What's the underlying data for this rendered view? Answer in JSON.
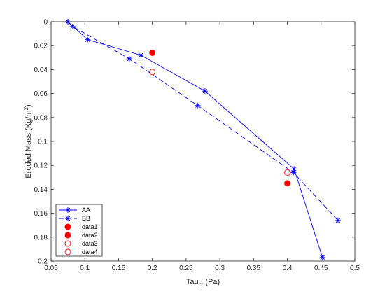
{
  "chart_data": {
    "type": "line",
    "xlabel": "Tau",
    "xlabel_sub": "cr",
    "xlabel_unit": " (Pa)",
    "ylabel": "Eroded Mass  (Kg/m",
    "ylabel_sup": "2",
    "ylabel_end": ")",
    "xlim": [
      0.05,
      0.5
    ],
    "ylim": [
      0,
      0.2
    ],
    "y_reversed": true,
    "x_ticks": [
      0.05,
      0.1,
      0.15,
      0.2,
      0.25,
      0.3,
      0.35,
      0.4,
      0.45,
      0.5
    ],
    "x_tick_labels": [
      "0.05",
      "0.1",
      "0.15",
      "0.2",
      "0.25",
      "0.3",
      "0.35",
      "0.4",
      "0.45",
      "0.5"
    ],
    "y_ticks": [
      0,
      0.02,
      0.04,
      0.06,
      0.08,
      0.1,
      0.12,
      0.14,
      0.16,
      0.18,
      0.2
    ],
    "y_tick_labels": [
      "0",
      "0.02",
      "0.04",
      "0.06",
      "0.08",
      "0.1",
      "0.12",
      "0.14",
      "0.16",
      "0.18",
      "0.2"
    ],
    "grid": false,
    "legend_position": "bottom-left",
    "series": [
      {
        "name": "AA",
        "style": "solid",
        "marker": "asterisk",
        "color": "#0000ff",
        "points": [
          [
            0.075,
            0
          ],
          [
            0.104,
            0.015
          ],
          [
            0.183,
            0.028
          ],
          [
            0.278,
            0.058
          ],
          [
            0.41,
            0.123
          ],
          [
            0.452,
            0.197
          ]
        ]
      },
      {
        "name": "BB",
        "style": "dashed",
        "marker": "asterisk",
        "color": "#0000ff",
        "points": [
          [
            0.075,
            0
          ],
          [
            0.082,
            0.004
          ],
          [
            0.166,
            0.031
          ],
          [
            0.267,
            0.07
          ],
          [
            0.409,
            0.126
          ],
          [
            0.475,
            0.166
          ]
        ]
      },
      {
        "name": "data1",
        "marker": "filled-circle",
        "color": "#ff0000",
        "points": [
          [
            0.2,
            0.026
          ]
        ]
      },
      {
        "name": "data2",
        "marker": "filled-circle",
        "color": "#ff0000",
        "points": [
          [
            0.4,
            0.135
          ]
        ]
      },
      {
        "name": "data3",
        "marker": "open-circle",
        "color": "#ff0000",
        "points": [
          [
            0.2,
            0.042
          ]
        ]
      },
      {
        "name": "data4",
        "marker": "open-circle",
        "color": "#ff0000",
        "points": [
          [
            0.4,
            0.126
          ]
        ]
      }
    ]
  }
}
